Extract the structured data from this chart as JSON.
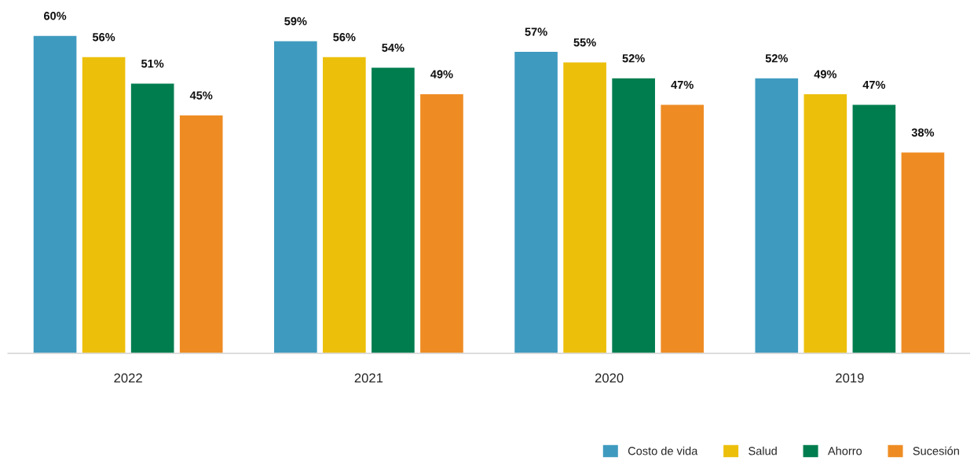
{
  "chart_data": {
    "type": "bar",
    "categories": [
      "2022",
      "2021",
      "2020",
      "2019"
    ],
    "series": [
      {
        "name": "Costo de vida",
        "color": "#3f9abf",
        "values": [
          60,
          59,
          57,
          52
        ],
        "value_labels": [
          "60%",
          "59%",
          "57%",
          "52%"
        ]
      },
      {
        "name": "Salud",
        "color": "#ecbf0b",
        "values": [
          56,
          56,
          55,
          49
        ],
        "value_labels": [
          "56%",
          "56%",
          "55%",
          "49%"
        ]
      },
      {
        "name": "Ahorro",
        "color": "#007d4f",
        "values": [
          51,
          54,
          52,
          47
        ],
        "value_labels": [
          "51%",
          "54%",
          "52%",
          "47%"
        ]
      },
      {
        "name": "Sucesión",
        "color": "#ee8c23",
        "values": [
          45,
          49,
          47,
          38
        ],
        "value_labels": [
          "45%",
          "49%",
          "47%",
          "38%"
        ]
      }
    ],
    "legend": "bottom right",
    "grid": false
  }
}
